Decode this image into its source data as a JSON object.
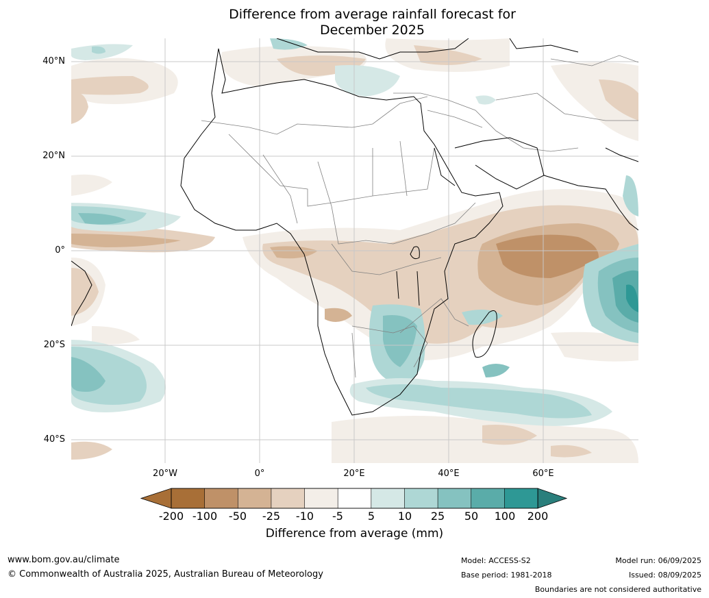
{
  "title_line1": "Difference from average rainfall forecast for",
  "title_line2": "December 2025",
  "map": {
    "lat_labels": [
      "40°N",
      "20°N",
      "0°",
      "20°S",
      "40°S"
    ],
    "lon_labels": [
      "20°W",
      "0°",
      "20°E",
      "40°E",
      "60°E"
    ],
    "grid": true
  },
  "colorbar": {
    "ticks": [
      "-200",
      "-100",
      "-50",
      "-25",
      "-10",
      "-5",
      "5",
      "10",
      "25",
      "50",
      "100",
      "200"
    ],
    "colors": [
      "#a86f37",
      "#bf9168",
      "#d4b394",
      "#e5d1bf",
      "#f3eee8",
      "#ffffff",
      "#d5e8e6",
      "#aed7d5",
      "#85c2c0",
      "#5aaca9",
      "#2e9895"
    ],
    "extend_low_color": "#a86f37",
    "extend_high_color": "#2a7f7c",
    "label": "Difference from average (mm)"
  },
  "footer": {
    "website": "www.bom.gov.au/climate",
    "copyright": "© Commonwealth of Australia 2025, Australian Bureau of Meteorology",
    "model": "Model: ACCESS-S2",
    "base_period": "Base period: 1981-2018",
    "model_run": "Model run: 06/09/2025",
    "issued": "Issued: 08/09/2025",
    "boundaries_note": "Boundaries are not considered authoritative"
  }
}
